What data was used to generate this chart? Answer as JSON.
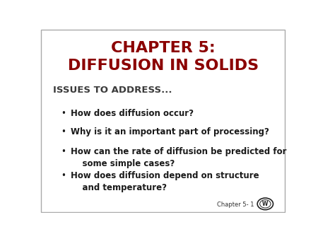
{
  "title_line1": "CHAPTER 5:",
  "title_line2": "DIFFUSION IN SOLIDS",
  "title_color": "#8B0000",
  "title_fontsize": 16,
  "title_fontweight": "bold",
  "section_header": "ISSUES TO ADDRESS...",
  "section_header_color": "#3a3a3a",
  "section_header_fontsize": 9.5,
  "section_header_fontweight": "bold",
  "bullet_points": [
    "How does diffusion occur?",
    "Why is it an important part of processing?",
    "How can the rate of diffusion be predicted for\n    some simple cases?",
    "How does diffusion depend on structure\n    and temperature?"
  ],
  "bullet_color": "#1a1a1a",
  "bullet_fontsize": 8.5,
  "footer_text": "Chapter 5- 1",
  "footer_fontsize": 6,
  "footer_color": "#333333",
  "background_color": "#ffffff",
  "border_color": "#aaaaaa"
}
